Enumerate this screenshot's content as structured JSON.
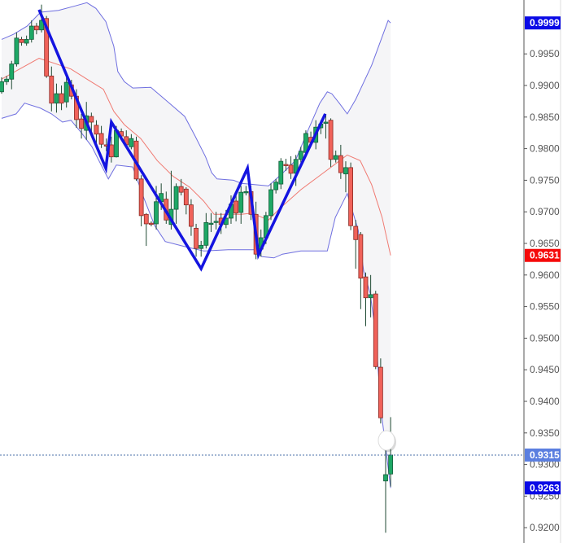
{
  "chart_data": {
    "type": "candlestick",
    "title": "",
    "xlabel": "",
    "ylabel": "",
    "ylim": [
      0.9185,
      1.0035
    ],
    "grid": false,
    "colors": {
      "up": "#1ea866",
      "down": "#f0625a",
      "wick": "#1f4a33",
      "band": "#6f6fe0",
      "band_fill": "#f5f5f7",
      "middle": "#f07a72",
      "zigzag": "#1414e0",
      "price_line": "#4a6fa8",
      "axis": "#555555"
    },
    "y_ticks": [
      "0.9950",
      "0.9900",
      "0.9850",
      "0.9800",
      "0.9750",
      "0.9700",
      "0.9650",
      "0.9600",
      "0.9550",
      "0.9500",
      "0.9450",
      "0.9400",
      "0.9350",
      "0.9300",
      "0.9250",
      "0.9200"
    ],
    "markers": [
      {
        "label": "0.9999",
        "value": 0.9999,
        "color": "#0a0ae6"
      },
      {
        "label": "0.9631",
        "value": 0.9631,
        "color": "#f50a0a"
      },
      {
        "label": "0.9315",
        "value": 0.9315,
        "color": "#5b7fe0"
      },
      {
        "label": "0.9263",
        "value": 0.9263,
        "color": "#0a0ae6"
      }
    ],
    "current_price": 0.9315,
    "ohlc": [
      [
        0.989,
        0.9913,
        0.9887,
        0.9906
      ],
      [
        0.9906,
        0.9915,
        0.9901,
        0.991
      ],
      [
        0.991,
        0.9939,
        0.9894,
        0.9934
      ],
      [
        0.9934,
        0.9984,
        0.993,
        0.9975
      ],
      [
        0.9973,
        0.9977,
        0.9963,
        0.9968
      ],
      [
        0.9967,
        0.9979,
        0.9963,
        0.9973
      ],
      [
        0.9973,
        1.0003,
        0.9968,
        0.9994
      ],
      [
        0.9994,
        0.9999,
        0.9981,
        0.9988
      ],
      [
        0.9988,
        1.0028,
        0.9984,
        1.0003
      ],
      [
        1.0006,
        1.001,
        0.9912,
        0.9915
      ],
      [
        0.9915,
        0.993,
        0.9859,
        0.9872
      ],
      [
        0.9872,
        0.9903,
        0.9857,
        0.9887
      ],
      [
        0.9887,
        0.99,
        0.9861,
        0.9872
      ],
      [
        0.9874,
        0.9917,
        0.9865,
        0.9905
      ],
      [
        0.9901,
        0.9909,
        0.9878,
        0.9883
      ],
      [
        0.9883,
        0.9894,
        0.9833,
        0.9846
      ],
      [
        0.9847,
        0.9855,
        0.9816,
        0.9832
      ],
      [
        0.9829,
        0.9874,
        0.9814,
        0.9852
      ],
      [
        0.9851,
        0.9857,
        0.9825,
        0.9842
      ],
      [
        0.9837,
        0.9845,
        0.9806,
        0.9823
      ],
      [
        0.9824,
        0.9836,
        0.9801,
        0.9807
      ],
      [
        0.9806,
        0.9816,
        0.9796,
        0.9805
      ],
      [
        0.9806,
        0.9819,
        0.9778,
        0.9787
      ],
      [
        0.9787,
        0.9836,
        0.9786,
        0.9829
      ],
      [
        0.9827,
        0.9832,
        0.9814,
        0.982
      ],
      [
        0.9819,
        0.9829,
        0.9801,
        0.9806
      ],
      [
        0.9803,
        0.9823,
        0.9799,
        0.9816
      ],
      [
        0.9812,
        0.9819,
        0.9749,
        0.9752
      ],
      [
        0.9752,
        0.9758,
        0.9677,
        0.9694
      ],
      [
        0.9696,
        0.9698,
        0.9646,
        0.9681
      ],
      [
        0.9682,
        0.9685,
        0.9677,
        0.9681
      ],
      [
        0.9681,
        0.9741,
        0.9672,
        0.9716
      ],
      [
        0.9716,
        0.9745,
        0.9703,
        0.9729
      ],
      [
        0.972,
        0.9732,
        0.9681,
        0.9687
      ],
      [
        0.968,
        0.9765,
        0.9672,
        0.9704
      ],
      [
        0.9704,
        0.9745,
        0.9681,
        0.974
      ],
      [
        0.974,
        0.9752,
        0.9726,
        0.9731
      ],
      [
        0.9736,
        0.9739,
        0.9696,
        0.9711
      ],
      [
        0.9711,
        0.972,
        0.9662,
        0.9677
      ],
      [
        0.9674,
        0.9681,
        0.9629,
        0.9642
      ],
      [
        0.9642,
        0.9654,
        0.9629,
        0.9647
      ],
      [
        0.9647,
        0.9698,
        0.9642,
        0.9683
      ],
      [
        0.9681,
        0.9698,
        0.9668,
        0.9682
      ],
      [
        0.9684,
        0.97,
        0.9672,
        0.9685
      ],
      [
        0.969,
        0.9698,
        0.9665,
        0.968
      ],
      [
        0.968,
        0.9703,
        0.9674,
        0.969
      ],
      [
        0.969,
        0.9726,
        0.9681,
        0.9712
      ],
      [
        0.9717,
        0.973,
        0.9685,
        0.9698
      ],
      [
        0.9699,
        0.9741,
        0.9681,
        0.9731
      ],
      [
        0.9731,
        0.9741,
        0.9726,
        0.9732
      ],
      [
        0.9732,
        0.9741,
        0.9687,
        0.9696
      ],
      [
        0.9696,
        0.9716,
        0.9625,
        0.9633
      ],
      [
        0.9641,
        0.9672,
        0.9629,
        0.9659
      ],
      [
        0.9659,
        0.97,
        0.9649,
        0.9694
      ],
      [
        0.9694,
        0.9745,
        0.9687,
        0.9735
      ],
      [
        0.9735,
        0.9752,
        0.9729,
        0.9747
      ],
      [
        0.9744,
        0.9785,
        0.9736,
        0.978
      ],
      [
        0.9775,
        0.9784,
        0.9765,
        0.9774
      ],
      [
        0.9774,
        0.9788,
        0.9752,
        0.9761
      ],
      [
        0.9761,
        0.979,
        0.9741,
        0.9783
      ],
      [
        0.9783,
        0.9803,
        0.9778,
        0.9796
      ],
      [
        0.9794,
        0.9829,
        0.9788,
        0.9824
      ],
      [
        0.9818,
        0.9827,
        0.9803,
        0.981
      ],
      [
        0.981,
        0.9845,
        0.9799,
        0.9834
      ],
      [
        0.9833,
        0.9845,
        0.9823,
        0.9839
      ],
      [
        0.9841,
        0.9855,
        0.9816,
        0.9842
      ],
      [
        0.9845,
        0.9848,
        0.9771,
        0.9783
      ],
      [
        0.9783,
        0.9797,
        0.9778,
        0.9789
      ],
      [
        0.9789,
        0.9806,
        0.9752,
        0.9762
      ],
      [
        0.976,
        0.978,
        0.9731,
        0.977
      ],
      [
        0.977,
        0.9778,
        0.9671,
        0.9678
      ],
      [
        0.9677,
        0.9687,
        0.961,
        0.9656
      ],
      [
        0.9664,
        0.9668,
        0.9546,
        0.9595
      ],
      [
        0.9597,
        0.9604,
        0.9519,
        0.9564
      ],
      [
        0.9564,
        0.96,
        0.9533,
        0.9569
      ],
      [
        0.957,
        0.9575,
        0.9451,
        0.9455
      ],
      [
        0.9454,
        0.9468,
        0.9365,
        0.9374
      ],
      [
        0.9274,
        0.934,
        0.9192,
        0.9284
      ],
      [
        0.9285,
        0.9375,
        0.9265,
        0.9315
      ]
    ],
    "upper_band": [
      [
        0,
        0.9973
      ],
      [
        2.4,
        0.9981
      ],
      [
        5.1,
        0.9994
      ],
      [
        7.8,
        1.0016
      ],
      [
        11.4,
        1.0019
      ],
      [
        14.8,
        1.0026
      ],
      [
        17.1,
        1.0031
      ],
      [
        18.9,
        1.0022
      ],
      [
        20.9,
        1.0001
      ],
      [
        22.5,
        0.9962
      ],
      [
        23.3,
        0.9922
      ],
      [
        24.6,
        0.9906
      ],
      [
        26.3,
        0.9896
      ],
      [
        29.9,
        0.9897
      ],
      [
        32.3,
        0.9881
      ],
      [
        36.7,
        0.9851
      ],
      [
        38.8,
        0.982
      ],
      [
        40.9,
        0.9787
      ],
      [
        42.1,
        0.9762
      ],
      [
        43.2,
        0.9752
      ],
      [
        46.5,
        0.975
      ],
      [
        48.1,
        0.9745
      ],
      [
        53.5,
        0.9741
      ],
      [
        56.3,
        0.9761
      ],
      [
        58.9,
        0.9781
      ],
      [
        61.2,
        0.9825
      ],
      [
        63.8,
        0.9872
      ],
      [
        65.3,
        0.989
      ],
      [
        66.2,
        0.9887
      ],
      [
        67.7,
        0.9872
      ],
      [
        69.3,
        0.9855
      ],
      [
        71.0,
        0.9878
      ],
      [
        74.2,
        0.9932
      ],
      [
        77.5,
        1.0003
      ],
      [
        78,
        0.9999
      ]
    ],
    "middle_band": [
      [
        0,
        0.991
      ],
      [
        2.9,
        0.9923
      ],
      [
        7.5,
        0.9943
      ],
      [
        10.6,
        0.9935
      ],
      [
        13.9,
        0.9926
      ],
      [
        17.1,
        0.991
      ],
      [
        20.4,
        0.9894
      ],
      [
        22.5,
        0.9859
      ],
      [
        24.6,
        0.9838
      ],
      [
        27.9,
        0.9816
      ],
      [
        31.2,
        0.9781
      ],
      [
        34.4,
        0.9756
      ],
      [
        37.7,
        0.9739
      ],
      [
        40.5,
        0.9717
      ],
      [
        42.6,
        0.9696
      ],
      [
        48.1,
        0.9696
      ],
      [
        50.2,
        0.9698
      ],
      [
        53.5,
        0.9687
      ],
      [
        55.6,
        0.9704
      ],
      [
        60.0,
        0.9735
      ],
      [
        64.4,
        0.9761
      ],
      [
        66.6,
        0.9774
      ],
      [
        69.3,
        0.979
      ],
      [
        71.9,
        0.9781
      ],
      [
        74.2,
        0.9743
      ],
      [
        76.3,
        0.9691
      ],
      [
        78,
        0.9631
      ]
    ],
    "lower_band": [
      [
        0,
        0.9848
      ],
      [
        2.9,
        0.9855
      ],
      [
        4.6,
        0.9872
      ],
      [
        7.8,
        0.9864
      ],
      [
        10.0,
        0.9855
      ],
      [
        12.2,
        0.9842
      ],
      [
        13.9,
        0.9845
      ],
      [
        16.0,
        0.9825
      ],
      [
        18.1,
        0.9803
      ],
      [
        19.7,
        0.9778
      ],
      [
        21.4,
        0.9752
      ],
      [
        23.0,
        0.9774
      ],
      [
        26.3,
        0.9771
      ],
      [
        28.5,
        0.9722
      ],
      [
        30.7,
        0.9678
      ],
      [
        32.8,
        0.9653
      ],
      [
        36.7,
        0.9645
      ],
      [
        40.5,
        0.9638
      ],
      [
        45.4,
        0.964
      ],
      [
        50.6,
        0.964
      ],
      [
        52.2,
        0.9629
      ],
      [
        54.6,
        0.9627
      ],
      [
        56.3,
        0.9633
      ],
      [
        60.0,
        0.9638
      ],
      [
        65.3,
        0.9638
      ],
      [
        66.9,
        0.9691
      ],
      [
        69.3,
        0.9729
      ],
      [
        71.5,
        0.9671
      ],
      [
        72.6,
        0.9606
      ],
      [
        73.9,
        0.9571
      ],
      [
        75.0,
        0.9507
      ],
      [
        76.0,
        0.9391
      ],
      [
        77.2,
        0.9315
      ],
      [
        78,
        0.9263
      ]
    ],
    "zigzag": [
      [
        7.5,
        1.002
      ],
      [
        20.9,
        0.9769
      ],
      [
        22.0,
        0.9842
      ],
      [
        40.0,
        0.961
      ],
      [
        49.3,
        0.9769
      ],
      [
        51.5,
        0.9632
      ],
      [
        64.9,
        0.9855
      ]
    ]
  }
}
